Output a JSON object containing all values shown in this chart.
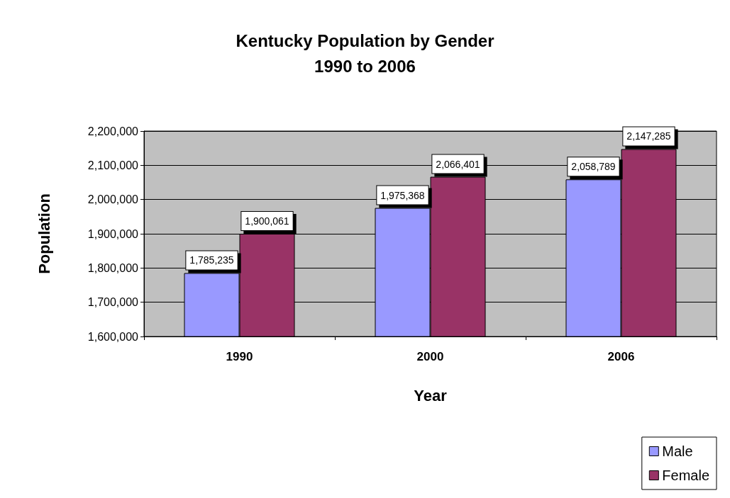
{
  "chart_data": {
    "type": "bar",
    "title": "Kentucky Population by Gender",
    "subtitle": "1990 to 2006",
    "xlabel": "Year",
    "ylabel": "Population",
    "categories": [
      "1990",
      "2000",
      "2006"
    ],
    "series": [
      {
        "name": "Male",
        "color": "#9999ff",
        "values": [
          1785235,
          1975368,
          2058789
        ],
        "value_labels": [
          "1,785,235",
          "1,975,368",
          "2,058,789"
        ]
      },
      {
        "name": "Female",
        "color": "#993366",
        "values": [
          1900061,
          2066401,
          2147285
        ],
        "value_labels": [
          "1,900,061",
          "2,066,401",
          "2,147,285"
        ]
      }
    ],
    "ylim": [
      1600000,
      2200000
    ],
    "yticks": [
      {
        "value": 1600000,
        "label": "1,600,000"
      },
      {
        "value": 1700000,
        "label": "1,700,000"
      },
      {
        "value": 1800000,
        "label": "1,800,000"
      },
      {
        "value": 1900000,
        "label": "1,900,000"
      },
      {
        "value": 2000000,
        "label": "2,000,000"
      },
      {
        "value": 2100000,
        "label": "2,100,000"
      },
      {
        "value": 2200000,
        "label": "2,200,000"
      }
    ],
    "grid": "y",
    "legend": "bottom right"
  }
}
